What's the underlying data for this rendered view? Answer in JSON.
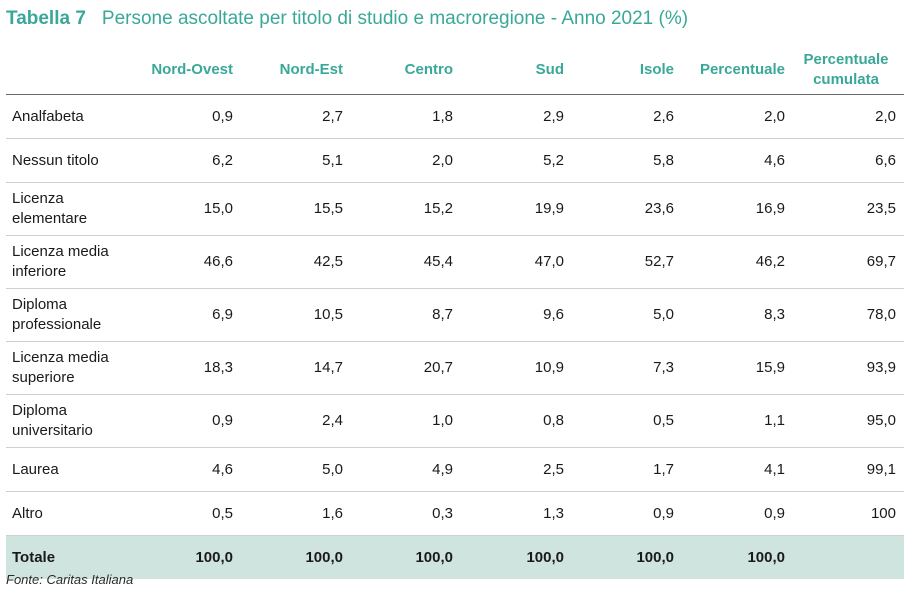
{
  "title": {
    "label": "Tabella 7",
    "text": "Persone ascoltate per titolo di studio e macroregione - Anno 2021 (%)"
  },
  "table": {
    "headers": [
      "",
      "Nord-Ovest",
      "Nord-Est",
      "Centro",
      "Sud",
      "Isole",
      "Percentuale",
      "Percentuale cumulata"
    ],
    "rows": [
      {
        "label": "Analfabeta",
        "values": [
          "0,9",
          "2,7",
          "1,8",
          "2,9",
          "2,6",
          "2,0",
          "2,0"
        ]
      },
      {
        "label": "Nessun titolo",
        "values": [
          "6,2",
          "5,1",
          "2,0",
          "5,2",
          "5,8",
          "4,6",
          "6,6"
        ]
      },
      {
        "label": "Licenza elementare",
        "values": [
          "15,0",
          "15,5",
          "15,2",
          "19,9",
          "23,6",
          "16,9",
          "23,5"
        ]
      },
      {
        "label": "Licenza media inferiore",
        "values": [
          "46,6",
          "42,5",
          "45,4",
          "47,0",
          "52,7",
          "46,2",
          "69,7"
        ]
      },
      {
        "label": "Diploma professionale",
        "values": [
          "6,9",
          "10,5",
          "8,7",
          "9,6",
          "5,0",
          "8,3",
          "78,0"
        ]
      },
      {
        "label": "Licenza media superiore",
        "values": [
          "18,3",
          "14,7",
          "20,7",
          "10,9",
          "7,3",
          "15,9",
          "93,9"
        ]
      },
      {
        "label": "Diploma universitario",
        "values": [
          "0,9",
          "2,4",
          "1,0",
          "0,8",
          "0,5",
          "1,1",
          "95,0"
        ]
      },
      {
        "label": "Laurea",
        "values": [
          "4,6",
          "5,0",
          "4,9",
          "2,5",
          "1,7",
          "4,1",
          "99,1"
        ]
      },
      {
        "label": "Altro",
        "values": [
          "0,5",
          "1,6",
          "0,3",
          "1,3",
          "0,9",
          "0,9",
          "100"
        ]
      }
    ],
    "total": {
      "label": "Totale",
      "values": [
        "100,0",
        "100,0",
        "100,0",
        "100,0",
        "100,0",
        "100,0",
        ""
      ]
    }
  },
  "footer": "Fonte: Caritas Italiana",
  "colors": {
    "accent": "#3aa899",
    "total_bg": "#cfe4de"
  }
}
